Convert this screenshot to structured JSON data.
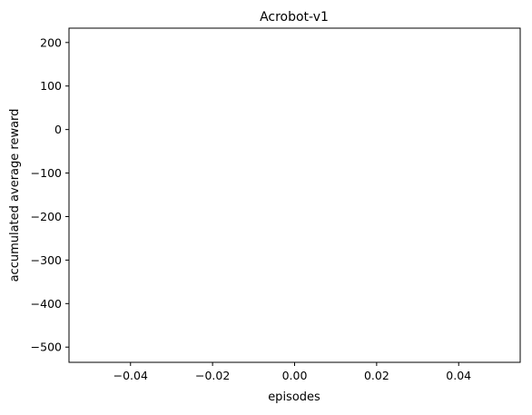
{
  "chart_data": {
    "type": "line",
    "title": "Acrobot-v1",
    "xlabel": "episodes",
    "ylabel": "accumulated average reward",
    "xlim": [
      -0.055,
      0.055
    ],
    "ylim": [
      -535,
      233
    ],
    "x_ticks": [
      {
        "value": -0.04,
        "label": "−0.04"
      },
      {
        "value": -0.02,
        "label": "−0.02"
      },
      {
        "value": 0.0,
        "label": "0.00"
      },
      {
        "value": 0.02,
        "label": "0.02"
      },
      {
        "value": 0.04,
        "label": "0.04"
      }
    ],
    "y_ticks": [
      {
        "value": 200,
        "label": "200"
      },
      {
        "value": 100,
        "label": "100"
      },
      {
        "value": 0,
        "label": "0"
      },
      {
        "value": -100,
        "label": "−100"
      },
      {
        "value": -200,
        "label": "−200"
      },
      {
        "value": -300,
        "label": "−300"
      },
      {
        "value": -400,
        "label": "−400"
      },
      {
        "value": -500,
        "label": "−500"
      }
    ],
    "series": [],
    "grid": false,
    "legend": "none"
  }
}
